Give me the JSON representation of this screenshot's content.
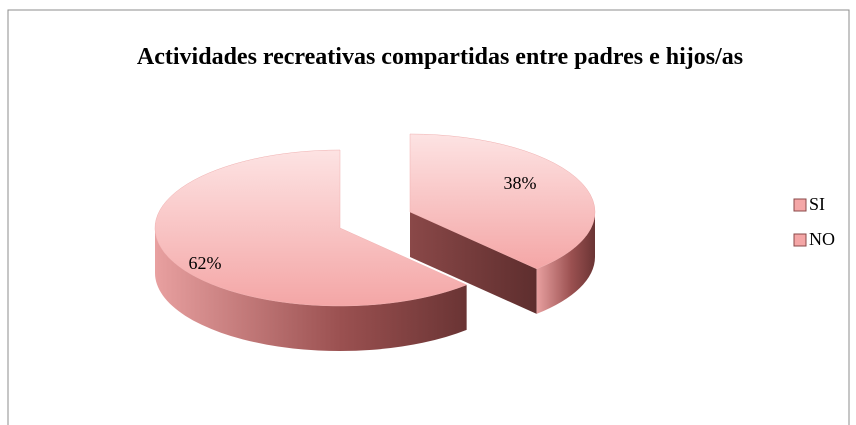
{
  "chart_data": {
    "type": "pie",
    "title": "Actividades recreativas compartidas entre padres e hijos/as",
    "categories": [
      "SI",
      "NO"
    ],
    "values": [
      38,
      62
    ],
    "value_labels": [
      "38%",
      "62%"
    ],
    "color": "#f4a6a6",
    "legend": "right"
  }
}
